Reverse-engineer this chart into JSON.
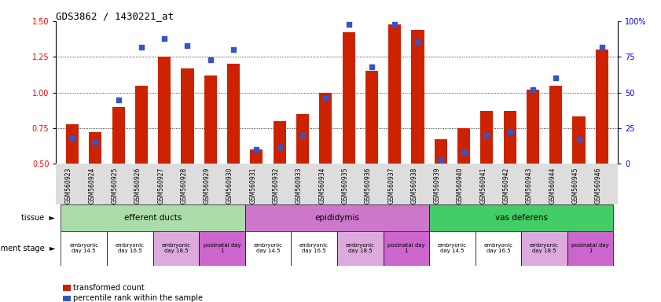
{
  "title": "GDS3862 / 1430221_at",
  "samples": [
    "GSM560923",
    "GSM560924",
    "GSM560925",
    "GSM560926",
    "GSM560927",
    "GSM560928",
    "GSM560929",
    "GSM560930",
    "GSM560931",
    "GSM560932",
    "GSM560933",
    "GSM560934",
    "GSM560935",
    "GSM560936",
    "GSM560937",
    "GSM560938",
    "GSM560939",
    "GSM560940",
    "GSM560941",
    "GSM560942",
    "GSM560943",
    "GSM560944",
    "GSM560945",
    "GSM560946"
  ],
  "transformed_count": [
    0.78,
    0.72,
    0.9,
    1.05,
    1.25,
    1.17,
    1.12,
    1.2,
    0.6,
    0.8,
    0.85,
    1.0,
    1.42,
    1.15,
    1.48,
    1.44,
    0.67,
    0.75,
    0.87,
    0.87,
    1.02,
    1.05,
    0.83,
    1.3
  ],
  "percentile_rank": [
    18,
    15,
    45,
    82,
    88,
    83,
    73,
    80,
    10,
    12,
    20,
    46,
    98,
    68,
    98,
    85,
    3,
    8,
    20,
    22,
    52,
    60,
    17,
    82
  ],
  "ylim_left": [
    0.5,
    1.5
  ],
  "ylim_right": [
    0,
    100
  ],
  "yticks_left": [
    0.5,
    0.75,
    1.0,
    1.25,
    1.5
  ],
  "yticks_right": [
    0,
    25,
    50,
    75,
    100
  ],
  "bar_color": "#cc2200",
  "dot_color": "#3355cc",
  "tissue_groups": [
    {
      "label": "efferent ducts",
      "start": 0,
      "end": 7,
      "color": "#aaddaa"
    },
    {
      "label": "epididymis",
      "start": 8,
      "end": 15,
      "color": "#cc77cc"
    },
    {
      "label": "vas deferens",
      "start": 16,
      "end": 23,
      "color": "#44cc66"
    }
  ],
  "dev_stages": [
    {
      "label": "embryonic\nday 14.5",
      "start": 0,
      "end": 1,
      "color": "#ffffff"
    },
    {
      "label": "embryonic\nday 16.5",
      "start": 2,
      "end": 3,
      "color": "#ffffff"
    },
    {
      "label": "embryonic\nday 18.5",
      "start": 4,
      "end": 5,
      "color": "#ddaadd"
    },
    {
      "label": "postnatal day\n1",
      "start": 6,
      "end": 7,
      "color": "#cc66cc"
    },
    {
      "label": "embryonic\nday 14.5",
      "start": 8,
      "end": 9,
      "color": "#ffffff"
    },
    {
      "label": "embryonic\nday 16.5",
      "start": 10,
      "end": 11,
      "color": "#ffffff"
    },
    {
      "label": "embryonic\nday 18.5",
      "start": 12,
      "end": 13,
      "color": "#ddaadd"
    },
    {
      "label": "postnatal day\n1",
      "start": 14,
      "end": 15,
      "color": "#cc66cc"
    },
    {
      "label": "embryonic\nday 14.5",
      "start": 16,
      "end": 17,
      "color": "#ffffff"
    },
    {
      "label": "embryonic\nday 16.5",
      "start": 18,
      "end": 19,
      "color": "#ffffff"
    },
    {
      "label": "embryonic\nday 18.5",
      "start": 20,
      "end": 21,
      "color": "#ddaadd"
    },
    {
      "label": "postnatal day\n1",
      "start": 22,
      "end": 23,
      "color": "#cc66cc"
    }
  ],
  "legend_items": [
    {
      "label": "transformed count",
      "color": "#cc2200"
    },
    {
      "label": "percentile rank within the sample",
      "color": "#3355cc"
    }
  ]
}
